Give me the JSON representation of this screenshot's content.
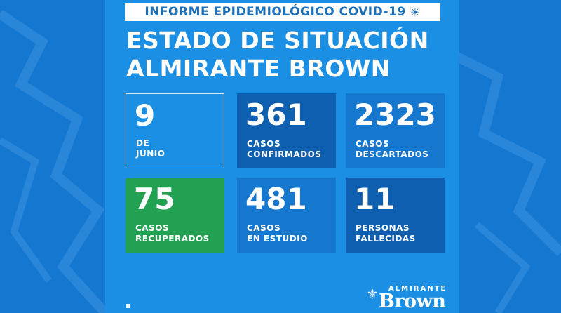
{
  "header": {
    "banner_text": "INFORME EPIDEMIOLÓGICO COVID-19",
    "banner_icon": "virus-icon"
  },
  "title": {
    "line1": "ESTADO DE SITUACIÓN",
    "line2": "ALMIRANTE BROWN"
  },
  "cards": [
    {
      "value": "9",
      "label1": "DE",
      "label2": "JUNIO"
    },
    {
      "value": "361",
      "label1": "CASOS",
      "label2": "CONFIRMADOS"
    },
    {
      "value": "2323",
      "label1": "CASOS",
      "label2": "DESCARTADOS"
    },
    {
      "value": "75",
      "label1": "CASOS",
      "label2": "RECUPERADOS"
    },
    {
      "value": "481",
      "label1": "CASOS",
      "label2": "EN ESTUDIO"
    },
    {
      "value": "11",
      "label1": "PERSONAS",
      "label2": "FALLECIDAS"
    }
  ],
  "logo": {
    "small": "ALMIRANTE",
    "big": "Brown",
    "mark_icon": "fleur-icon"
  },
  "colors": {
    "background": "#0d6fc6",
    "poster": "#1a8fe3",
    "card_dark": "#0e5fb0",
    "card_mid": "#1677cf",
    "card_green": "#22a152"
  }
}
